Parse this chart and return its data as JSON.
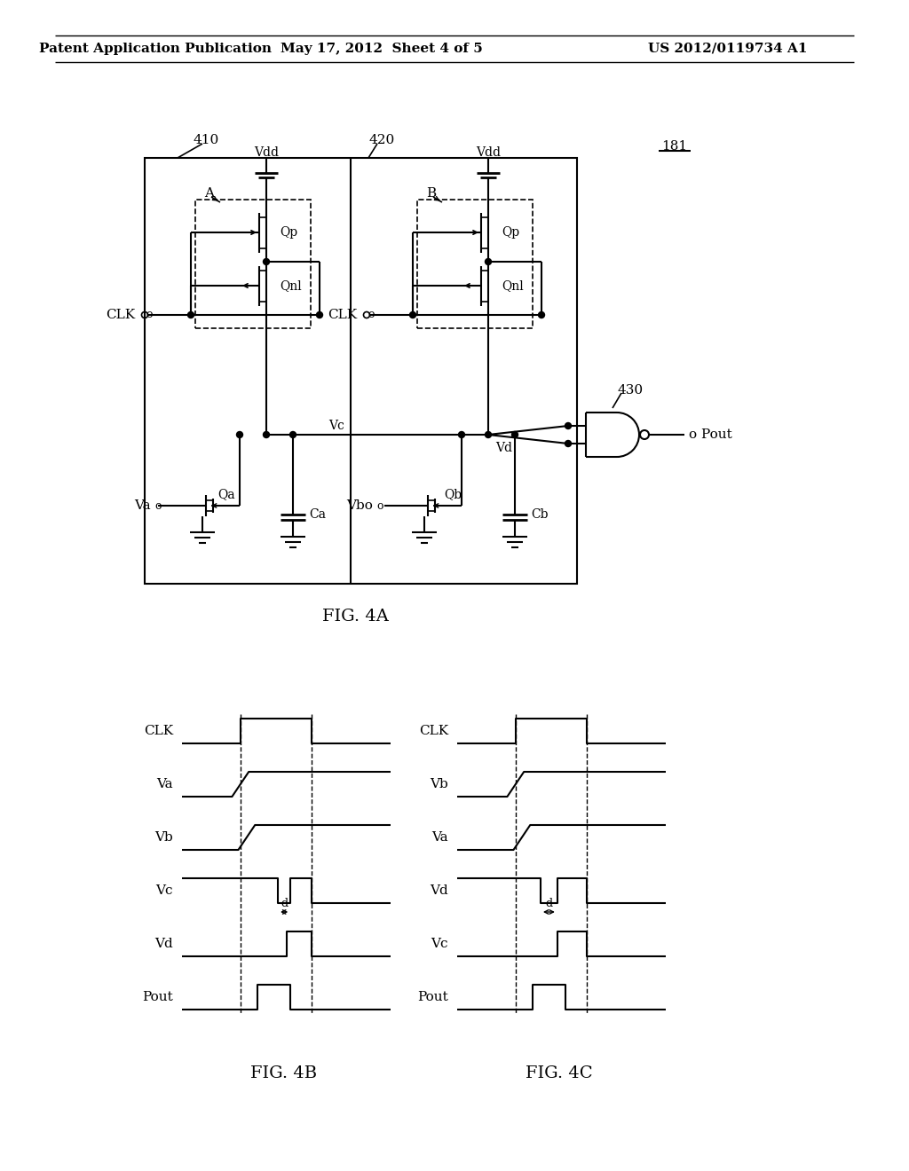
{
  "bg_color": "#ffffff",
  "header_left": "Patent Application Publication",
  "header_mid": "May 17, 2012  Sheet 4 of 5",
  "header_right": "US 2012/0119734 A1",
  "fig4a_label": "FIG. 4A",
  "fig4b_label": "FIG. 4B",
  "fig4c_label": "FIG. 4C",
  "label_181": "181",
  "label_410": "410",
  "label_420": "420",
  "label_430": "430"
}
